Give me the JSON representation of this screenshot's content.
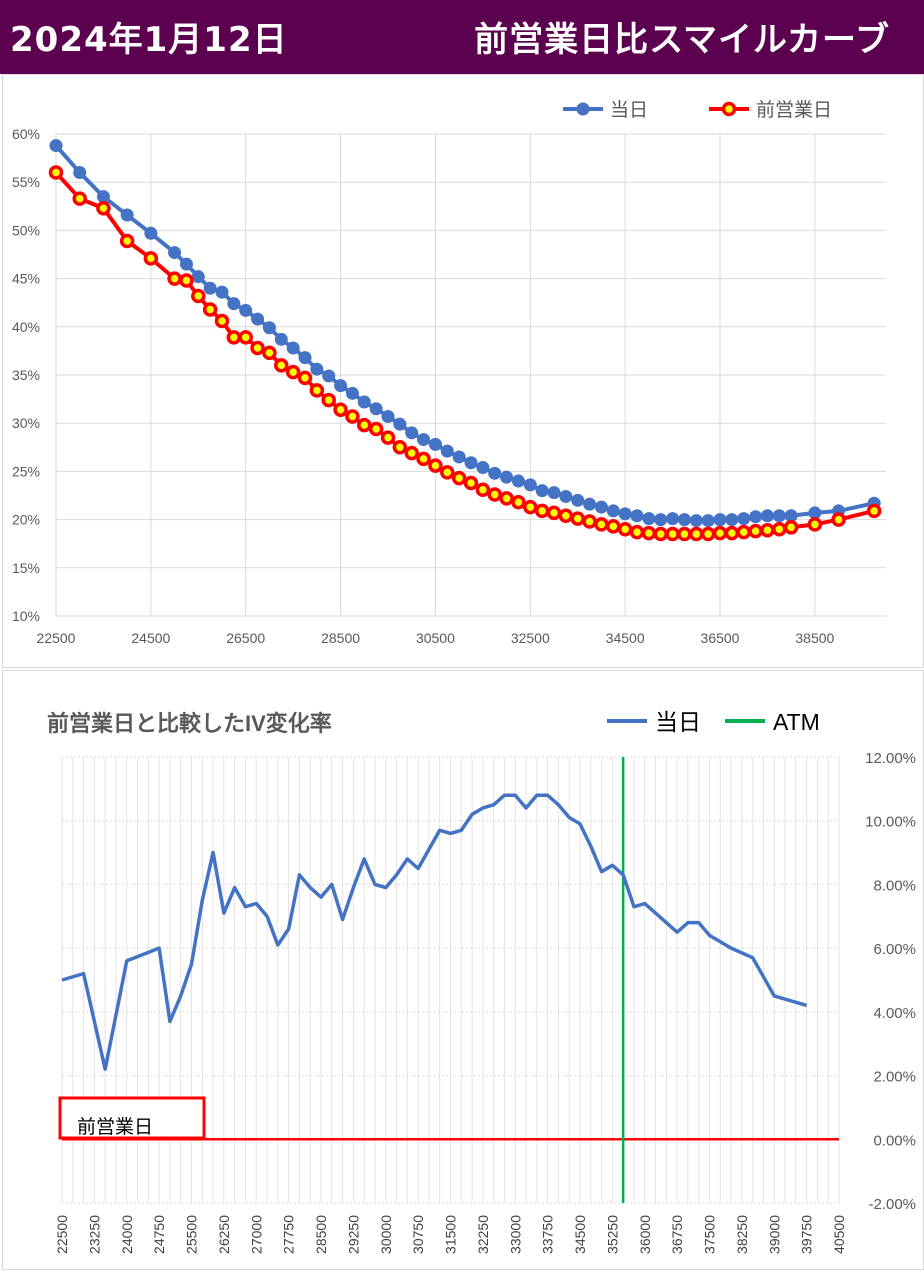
{
  "header": {
    "date": "2024年1月12日",
    "title": "前営業日比スマイルカーブ"
  },
  "colors": {
    "header_bg": "#5c0050",
    "today": "#4472c4",
    "prev": "#ff0000",
    "atm": "#00b050",
    "grid": "#d9d9d9"
  },
  "chart_data": [
    {
      "type": "line",
      "title": "",
      "legend_position": "top-right",
      "grid": true,
      "ylim": [
        0.1,
        0.6
      ],
      "y_ticks": [
        "60%",
        "55%",
        "50%",
        "45%",
        "40%",
        "35%",
        "30%",
        "25%",
        "20%",
        "15%",
        "10%"
      ],
      "xlim": [
        22500,
        40000
      ],
      "x_ticks": [
        "22500",
        "24500",
        "26500",
        "28500",
        "30500",
        "32500",
        "34500",
        "36500",
        "38500"
      ],
      "series": [
        {
          "name": "当日",
          "color": "#4472c4",
          "x": [
            22500,
            23000,
            23500,
            24000,
            24500,
            25000,
            25250,
            25500,
            25750,
            26000,
            26250,
            26500,
            26750,
            27000,
            27250,
            27500,
            27750,
            28000,
            28250,
            28500,
            28750,
            29000,
            29250,
            29500,
            29750,
            30000,
            30250,
            30500,
            30750,
            31000,
            31250,
            31500,
            31750,
            32000,
            32250,
            32500,
            32750,
            33000,
            33250,
            33500,
            33750,
            34000,
            34250,
            34500,
            34750,
            35000,
            35250,
            35500,
            35750,
            36000,
            36250,
            36500,
            36750,
            37000,
            37250,
            37500,
            37750,
            38000,
            38500,
            39000,
            39750
          ],
          "values": [
            0.588,
            0.56,
            0.535,
            0.516,
            0.497,
            0.477,
            0.465,
            0.452,
            0.44,
            0.436,
            0.424,
            0.417,
            0.408,
            0.399,
            0.387,
            0.378,
            0.368,
            0.356,
            0.349,
            0.339,
            0.331,
            0.322,
            0.315,
            0.307,
            0.299,
            0.29,
            0.283,
            0.278,
            0.271,
            0.265,
            0.259,
            0.254,
            0.248,
            0.244,
            0.24,
            0.236,
            0.23,
            0.228,
            0.224,
            0.22,
            0.216,
            0.213,
            0.209,
            0.206,
            0.204,
            0.201,
            0.2,
            0.201,
            0.2,
            0.199,
            0.199,
            0.2,
            0.2,
            0.201,
            0.203,
            0.204,
            0.204,
            0.204,
            0.207,
            0.209,
            0.217
          ]
        },
        {
          "name": "前営業日",
          "color": "#ff0000",
          "x": [
            22500,
            23000,
            23500,
            24000,
            24500,
            25000,
            25250,
            25500,
            25750,
            26000,
            26250,
            26500,
            26750,
            27000,
            27250,
            27500,
            27750,
            28000,
            28250,
            28500,
            28750,
            29000,
            29250,
            29500,
            29750,
            30000,
            30250,
            30500,
            30750,
            31000,
            31250,
            31500,
            31750,
            32000,
            32250,
            32500,
            32750,
            33000,
            33250,
            33500,
            33750,
            34000,
            34250,
            34500,
            34750,
            35000,
            35250,
            35500,
            35750,
            36000,
            36250,
            36500,
            36750,
            37000,
            37250,
            37500,
            37750,
            38000,
            38500,
            39000,
            39750
          ],
          "values": [
            0.56,
            0.533,
            0.523,
            0.489,
            0.471,
            0.45,
            0.448,
            0.432,
            0.418,
            0.406,
            0.389,
            0.389,
            0.378,
            0.373,
            0.36,
            0.353,
            0.347,
            0.334,
            0.324,
            0.314,
            0.307,
            0.298,
            0.294,
            0.285,
            0.275,
            0.269,
            0.263,
            0.256,
            0.249,
            0.243,
            0.238,
            0.231,
            0.226,
            0.222,
            0.218,
            0.213,
            0.209,
            0.207,
            0.204,
            0.201,
            0.198,
            0.195,
            0.193,
            0.19,
            0.187,
            0.186,
            0.185,
            0.185,
            0.185,
            0.185,
            0.185,
            0.186,
            0.186,
            0.187,
            0.188,
            0.189,
            0.19,
            0.192,
            0.195,
            0.2,
            0.209
          ]
        }
      ]
    },
    {
      "type": "line",
      "title": "前営業日と比較したIV変化率",
      "legend_position": "top-right",
      "grid": true,
      "ylim": [
        -0.02,
        0.12
      ],
      "y_ticks": [
        "12.00%",
        "10.00%",
        "8.00%",
        "6.00%",
        "4.00%",
        "2.00%",
        "0.00%",
        "-2.00%"
      ],
      "xlim": [
        22500,
        40500
      ],
      "x_ticks": [
        "22500",
        "23250",
        "24000",
        "24750",
        "25500",
        "26250",
        "27000",
        "27750",
        "28500",
        "29250",
        "30000",
        "30750",
        "31500",
        "32250",
        "33000",
        "33750",
        "34500",
        "35250",
        "36000",
        "36750",
        "37500",
        "38250",
        "39000",
        "39750",
        "40500"
      ],
      "atm_strike": 35500,
      "baseline_label": "前営業日",
      "series": [
        {
          "name": "当日",
          "color": "#4472c4",
          "x": [
            22500,
            23000,
            23500,
            24000,
            24750,
            25000,
            25250,
            25500,
            25750,
            26000,
            26250,
            26500,
            26750,
            27000,
            27250,
            27500,
            27750,
            28000,
            28250,
            28500,
            28750,
            29000,
            29250,
            29500,
            29750,
            30000,
            30250,
            30500,
            30750,
            31000,
            31250,
            31500,
            31750,
            32000,
            32250,
            32500,
            32750,
            33000,
            33250,
            33500,
            33750,
            34000,
            34250,
            34500,
            34750,
            35000,
            35250,
            35500,
            35750,
            36000,
            36250,
            36500,
            36750,
            37000,
            37250,
            37500,
            37750,
            38000,
            38500,
            39000,
            39750
          ],
          "values": [
            0.05,
            0.052,
            0.022,
            0.056,
            0.06,
            0.037,
            0.045,
            0.055,
            0.075,
            0.09,
            0.071,
            0.079,
            0.073,
            0.074,
            0.07,
            0.061,
            0.066,
            0.083,
            0.079,
            0.076,
            0.08,
            0.069,
            0.079,
            0.088,
            0.08,
            0.079,
            0.083,
            0.088,
            0.085,
            0.091,
            0.097,
            0.096,
            0.097,
            0.102,
            0.104,
            0.105,
            0.108,
            0.108,
            0.104,
            0.108,
            0.108,
            0.105,
            0.101,
            0.099,
            0.092,
            0.084,
            0.086,
            0.083,
            0.073,
            0.074,
            0.071,
            0.068,
            0.065,
            0.068,
            0.068,
            0.064,
            0.062,
            0.06,
            0.057,
            0.045,
            0.042
          ]
        },
        {
          "name": "ATM",
          "color": "#00b050",
          "x": [
            35500
          ],
          "values": [
            0.12
          ]
        },
        {
          "name": "",
          "color": "#ff0000",
          "x": [
            22500,
            40500
          ],
          "values": [
            0.0,
            0.0
          ]
        }
      ]
    }
  ]
}
